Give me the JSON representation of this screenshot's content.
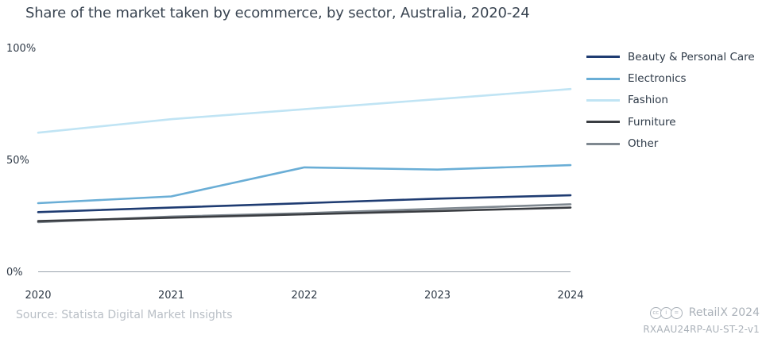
{
  "chart_data": {
    "type": "line",
    "title": "Share of the market taken by ecommerce, by sector, Australia, 2020-24",
    "xlabel": "",
    "ylabel": "",
    "categories": [
      "2020",
      "2021",
      "2022",
      "2023",
      "2024"
    ],
    "ylim": [
      0,
      100
    ],
    "yticks": [
      "0%",
      "50%",
      "100%"
    ],
    "ytick_values": [
      0,
      50,
      100
    ],
    "grid": false,
    "legend_position": "right",
    "series": [
      {
        "name": "Beauty & Personal Care",
        "color": "#1f3c72",
        "values": [
          26.5,
          28.5,
          30.5,
          32.5,
          34.0
        ]
      },
      {
        "name": "Electronics",
        "color": "#6aaed6",
        "values": [
          30.5,
          33.5,
          46.5,
          45.5,
          47.5
        ]
      },
      {
        "name": "Fashion",
        "color": "#c0e4f4",
        "values": [
          62.0,
          68.0,
          72.5,
          77.0,
          81.5
        ]
      },
      {
        "name": "Furniture",
        "color": "#3a3d42",
        "values": [
          22.5,
          24.0,
          25.5,
          27.0,
          28.5
        ]
      },
      {
        "name": "Other",
        "color": "#7f8890",
        "values": [
          22.0,
          24.5,
          26.0,
          28.0,
          30.0
        ]
      }
    ]
  },
  "footer": {
    "source": "Source: Statista Digital Market Insights",
    "brand": "RetailX 2024",
    "code": "RXAAU24RP-AU-ST-2-v1",
    "license_icons": [
      "cc",
      "i",
      "="
    ]
  }
}
